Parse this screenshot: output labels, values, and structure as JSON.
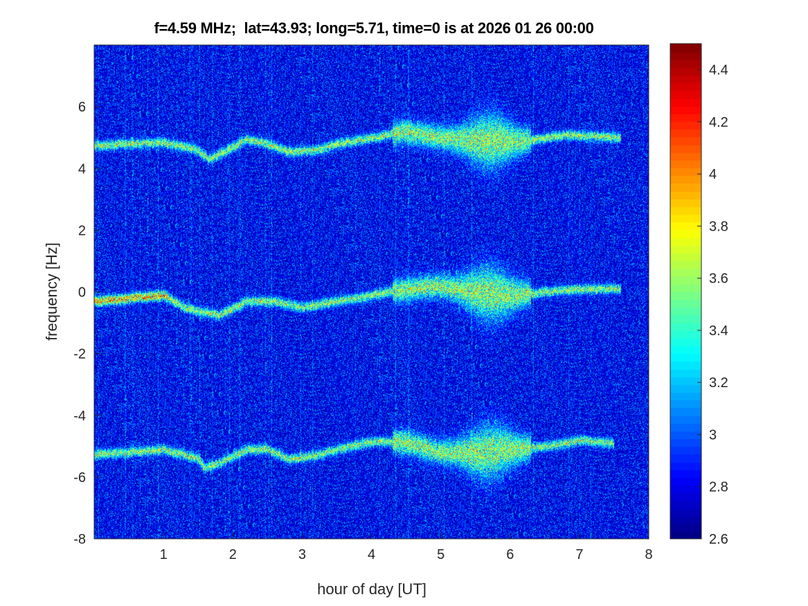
{
  "chart_data": {
    "type": "heatmap",
    "title": "f=4.59 MHz;  lat=43.93; long=5.71, time=0 is at 2026 01 26 00:00",
    "xlabel": "hour of day [UT]",
    "ylabel": "frequency [Hz]",
    "xlim": [
      0,
      8
    ],
    "ylim": [
      -8,
      8
    ],
    "xticks": [
      1,
      2,
      3,
      4,
      5,
      6,
      7,
      8
    ],
    "yticks": [
      -8,
      -6,
      -4,
      -2,
      0,
      2,
      4,
      6
    ],
    "colormap": "jet",
    "clim": [
      2.6,
      4.5
    ],
    "colorbar_ticks": [
      2.6,
      2.8,
      3,
      3.2,
      3.4,
      3.6,
      3.8,
      4,
      4.2,
      4.4
    ],
    "background_level": 2.8,
    "traces": [
      {
        "name": "upper Doppler trace",
        "points": [
          [
            0,
            4.75
          ],
          [
            0.5,
            4.8
          ],
          [
            1,
            4.85
          ],
          [
            1.5,
            4.6
          ],
          [
            1.65,
            4.3
          ],
          [
            2,
            4.7
          ],
          [
            2.2,
            4.95
          ],
          [
            2.5,
            4.8
          ],
          [
            2.8,
            4.55
          ],
          [
            3.2,
            4.6
          ],
          [
            3.5,
            4.8
          ],
          [
            4,
            5.0
          ],
          [
            4.5,
            5.2
          ],
          [
            5,
            5.0
          ],
          [
            5.5,
            4.9
          ],
          [
            5.8,
            4.9
          ],
          [
            6.2,
            4.9
          ],
          [
            6.8,
            5.1
          ],
          [
            7.6,
            5.0
          ]
        ]
      },
      {
        "name": "central Doppler trace",
        "points": [
          [
            0,
            -0.3
          ],
          [
            0.5,
            -0.2
          ],
          [
            1,
            -0.1
          ],
          [
            1.3,
            -0.5
          ],
          [
            1.8,
            -0.75
          ],
          [
            2.2,
            -0.3
          ],
          [
            2.6,
            -0.3
          ],
          [
            3,
            -0.5
          ],
          [
            3.5,
            -0.3
          ],
          [
            4,
            -0.1
          ],
          [
            4.5,
            0.1
          ],
          [
            5,
            0.2
          ],
          [
            5.5,
            0.0
          ],
          [
            6,
            -0.1
          ],
          [
            6.5,
            0.0
          ],
          [
            7,
            0.1
          ],
          [
            7.6,
            0.1
          ]
        ]
      },
      {
        "name": "lower Doppler trace",
        "points": [
          [
            0,
            -5.25
          ],
          [
            0.5,
            -5.2
          ],
          [
            1,
            -5.1
          ],
          [
            1.5,
            -5.4
          ],
          [
            1.6,
            -5.7
          ],
          [
            1.85,
            -5.5
          ],
          [
            2.2,
            -5.1
          ],
          [
            2.5,
            -5.1
          ],
          [
            2.8,
            -5.4
          ],
          [
            3.2,
            -5.3
          ],
          [
            3.5,
            -5.1
          ],
          [
            4,
            -4.85
          ],
          [
            4.5,
            -4.85
          ],
          [
            5,
            -5.2
          ],
          [
            5.5,
            -5.2
          ],
          [
            6,
            -5.1
          ],
          [
            6.5,
            -5.0
          ],
          [
            7,
            -4.8
          ],
          [
            7.5,
            -4.9
          ]
        ]
      }
    ]
  }
}
